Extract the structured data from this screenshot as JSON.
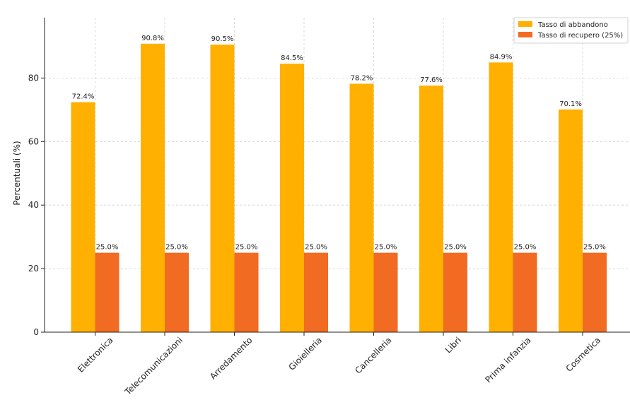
{
  "chart_data": {
    "type": "bar",
    "title": "",
    "xlabel": "",
    "ylabel": "Percentuali (%)",
    "ylim": [
      0,
      99
    ],
    "yticks": [
      0,
      20,
      40,
      60,
      80
    ],
    "grid": true,
    "legend_position": "top-right",
    "categories": [
      "Elettronica",
      "Telecomunicazioni",
      "Arredamento",
      "Gioielleria",
      "Cancelleria",
      "Libri",
      "Prima infanzia",
      "Cosmetica"
    ],
    "series": [
      {
        "name": "Tasso di abbandono",
        "color": "#FFB000",
        "values": [
          72.4,
          90.8,
          90.5,
          84.5,
          78.2,
          77.6,
          84.9,
          70.1
        ],
        "labels": [
          "72.4%",
          "90.8%",
          "90.5%",
          "84.5%",
          "78.2%",
          "77.6%",
          "84.9%",
          "70.1%"
        ]
      },
      {
        "name": "Tasso di recupero (25%)",
        "color": "#F26B22",
        "values": [
          25.0,
          25.0,
          25.0,
          25.0,
          25.0,
          25.0,
          25.0,
          25.0
        ],
        "labels": [
          "25.0%",
          "25.0%",
          "25.0%",
          "25.0%",
          "25.0%",
          "25.0%",
          "25.0%",
          "25.0%"
        ]
      }
    ]
  }
}
